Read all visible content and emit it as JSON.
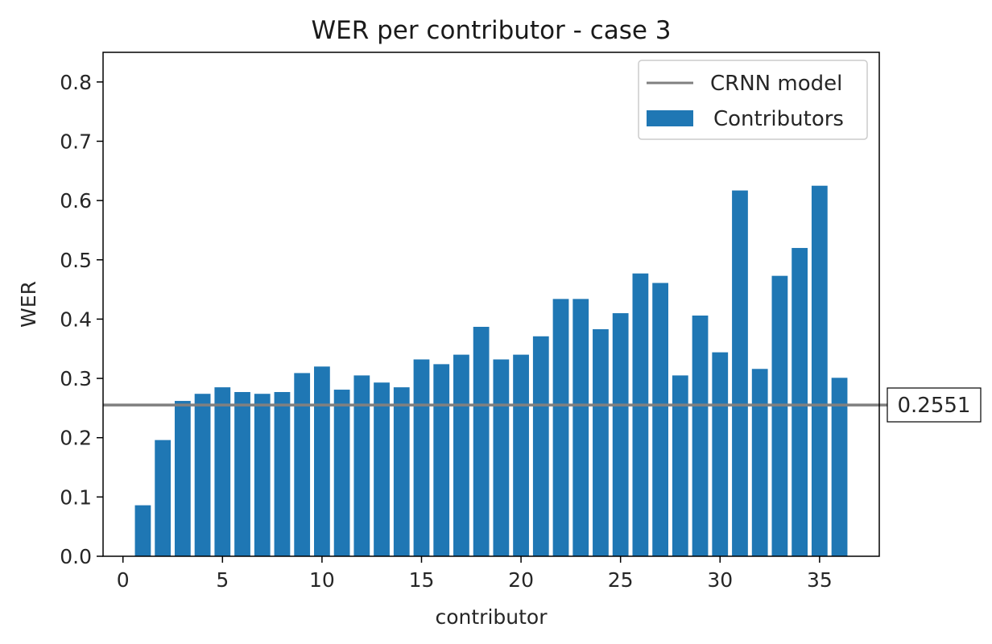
{
  "chart_data": {
    "type": "bar",
    "title": "WER per contributor - case 3",
    "xlabel": "contributor",
    "ylabel": "WER",
    "xlim": [
      -1,
      38
    ],
    "ylim": [
      0,
      0.85
    ],
    "xticks": [
      0,
      5,
      10,
      15,
      20,
      25,
      30,
      35
    ],
    "xtick_labels": [
      "0",
      "5",
      "10",
      "15",
      "20",
      "25",
      "30",
      "35"
    ],
    "yticks": [
      0.0,
      0.1,
      0.2,
      0.3,
      0.4,
      0.5,
      0.6,
      0.7,
      0.8
    ],
    "ytick_labels": [
      "0.0",
      "0.1",
      "0.2",
      "0.3",
      "0.4",
      "0.5",
      "0.6",
      "0.7",
      "0.8"
    ],
    "grid": false,
    "legend_position": "top-right",
    "series": [
      {
        "name": "Contributors",
        "color": "#1f77b4",
        "x": [
          1,
          2,
          3,
          4,
          5,
          6,
          7,
          8,
          9,
          10,
          11,
          12,
          13,
          14,
          15,
          16,
          17,
          18,
          19,
          20,
          21,
          22,
          23,
          24,
          25,
          26,
          27,
          28,
          29,
          30,
          31,
          32,
          33,
          34,
          35,
          36
        ],
        "values": [
          0.086,
          0.196,
          0.262,
          0.274,
          0.285,
          0.277,
          0.274,
          0.277,
          0.309,
          0.32,
          0.281,
          0.305,
          0.293,
          0.285,
          0.332,
          0.324,
          0.34,
          0.387,
          0.332,
          0.34,
          0.371,
          0.434,
          0.434,
          0.383,
          0.41,
          0.477,
          0.461,
          0.305,
          0.406,
          0.344,
          0.617,
          0.316,
          0.473,
          0.52,
          0.625,
          0.301
        ]
      }
    ],
    "reference_line": {
      "name": "CRNN model",
      "value": 0.2551,
      "label": "0.2551",
      "color": "#808080"
    }
  }
}
